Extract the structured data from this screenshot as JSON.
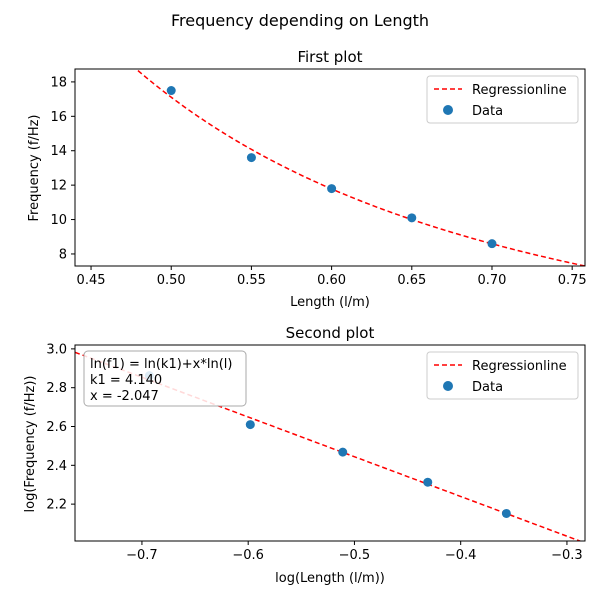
{
  "figure": {
    "suptitle": "Frequency depending on Length"
  },
  "chart_data": [
    {
      "type": "scatter",
      "title": "First plot",
      "xlabel": "Length (l/m)",
      "ylabel": "Frequency (f/Hz)",
      "xlim": [
        0.44,
        0.758
      ],
      "ylim": [
        7.3,
        18.75
      ],
      "xticks": [
        0.45,
        0.5,
        0.55,
        0.6,
        0.65,
        0.7,
        0.75
      ],
      "xtick_labels": [
        "0.45",
        "0.50",
        "0.55",
        "0.60",
        "0.65",
        "0.70",
        "0.75"
      ],
      "yticks": [
        8,
        10,
        12,
        14,
        16,
        18
      ],
      "ytick_labels": [
        "8",
        "10",
        "12",
        "14",
        "16",
        "18"
      ],
      "legend": {
        "position": "top-right",
        "entries": [
          "Regressionline",
          "Data"
        ]
      },
      "series": [
        {
          "name": "Data",
          "kind": "points",
          "color": "#1f77b4",
          "x": [
            0.5,
            0.55,
            0.6,
            0.65,
            0.7
          ],
          "y": [
            17.5,
            13.6,
            11.8,
            10.1,
            8.6
          ]
        },
        {
          "name": "Regressionline",
          "kind": "curve",
          "color": "#ff0000",
          "style": "dashed",
          "model": "power",
          "k": 4.14,
          "exponent": -2.047
        }
      ]
    },
    {
      "type": "scatter",
      "title": "Second plot",
      "xlabel": "log(Length (l/m))",
      "ylabel": "log(Frequency (f/Hz))",
      "xlim": [
        -0.763,
        -0.283
      ],
      "ylim": [
        2.01,
        3.02
      ],
      "xticks": [
        -0.7,
        -0.6,
        -0.5,
        -0.4,
        -0.3
      ],
      "xtick_labels": [
        "−0.7",
        "−0.6",
        "−0.5",
        "−0.4",
        "−0.3"
      ],
      "yticks": [
        2.2,
        2.4,
        2.6,
        2.8,
        3.0
      ],
      "ytick_labels": [
        "2.2",
        "2.4",
        "2.6",
        "2.8",
        "3.0"
      ],
      "legend": {
        "position": "top-right",
        "entries": [
          "Regressionline",
          "Data"
        ]
      },
      "annotation": [
        "ln(f1) = ln(k1)+x*ln(l)",
        "k1 = 4.140",
        "x = -2.047"
      ],
      "series": [
        {
          "name": "Data",
          "kind": "points",
          "color": "#1f77b4",
          "x": [
            -0.693,
            -0.598,
            -0.511,
            -0.431,
            -0.357
          ],
          "y": [
            2.862,
            2.61,
            2.468,
            2.313,
            2.152
          ]
        },
        {
          "name": "Regressionline",
          "kind": "line",
          "color": "#ff0000",
          "style": "dashed",
          "intercept": 1.4207,
          "slope": -2.047
        }
      ]
    }
  ]
}
